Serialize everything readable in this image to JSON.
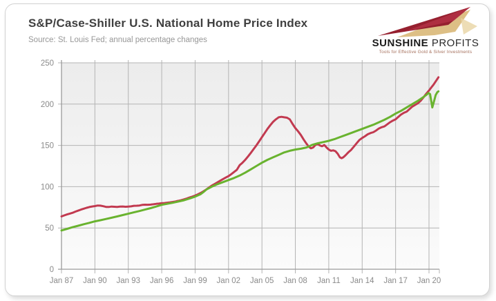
{
  "header": {
    "title": "S&P/Case-Shiller U.S. National Home Price Index",
    "source": "Source: St. Louis Fed; annual percentage changes"
  },
  "logo": {
    "name_bold": "SUNSHINE",
    "name_light": " PROFITS",
    "tagline": "Tools for Effective Gold & Silver Investments",
    "colors": {
      "maroon": "#96202f",
      "crimson": "#c23a50",
      "gold": "#d9b878",
      "gold_light": "#e8d4a4"
    }
  },
  "colors": {
    "title": "#3f3f3f",
    "source": "#979797",
    "card_border": "#d2d2d2",
    "grid": "#b3b3b3",
    "axis": "#9a9a9a",
    "tick_label": "#8a8a8a",
    "plot_bg_top": "#ececec",
    "plot_bg_bottom": "#fbfbfb",
    "red_line": "#c23a50",
    "green_line": "#69b32f"
  },
  "chart_data": {
    "type": "line",
    "title": "S&P/Case-Shiller U.S. National Home Price Index",
    "xlabel": "",
    "ylabel": "",
    "grid": true,
    "legend": "none",
    "x_axis": {
      "range": [
        1987,
        2020.93
      ],
      "tick_years": [
        1987,
        1990,
        1993,
        1996,
        1999,
        2002,
        2005,
        2008,
        2011,
        2014,
        2017,
        2020
      ],
      "tick_labels": [
        "Jan 87",
        "Jan 90",
        "Jan 93",
        "Jan 96",
        "Jan 99",
        "Jan 02",
        "Jan 05",
        "Jan 08",
        "Jan 11",
        "Jan 14",
        "Jan 17",
        "Jan 20"
      ]
    },
    "y_axis": {
      "range": [
        0,
        250
      ],
      "ticks": [
        0,
        50,
        100,
        150,
        200,
        250
      ]
    },
    "series": [
      {
        "name": "red line (home price index)",
        "color": "#c23a50",
        "points": [
          [
            1987.0,
            64
          ],
          [
            1987.25,
            65.2
          ],
          [
            1987.5,
            66.4
          ],
          [
            1987.75,
            67.4
          ],
          [
            1988.0,
            68.4
          ],
          [
            1988.25,
            69.8
          ],
          [
            1988.5,
            71
          ],
          [
            1988.75,
            72.2
          ],
          [
            1989.0,
            73.3
          ],
          [
            1989.25,
            74.4
          ],
          [
            1989.5,
            75.3
          ],
          [
            1989.75,
            76
          ],
          [
            1990.0,
            76.5
          ],
          [
            1990.25,
            77.2
          ],
          [
            1990.5,
            77
          ],
          [
            1990.75,
            76.3
          ],
          [
            1991.0,
            75.5
          ],
          [
            1991.25,
            75.4
          ],
          [
            1991.5,
            75.9
          ],
          [
            1991.75,
            75.7
          ],
          [
            1992.0,
            75.4
          ],
          [
            1992.25,
            75.8
          ],
          [
            1992.5,
            76
          ],
          [
            1992.75,
            75.7
          ],
          [
            1993.0,
            75.9
          ],
          [
            1993.25,
            76.2
          ],
          [
            1993.5,
            76.8
          ],
          [
            1993.75,
            76.9
          ],
          [
            1994.0,
            77.2
          ],
          [
            1994.25,
            77.9
          ],
          [
            1994.5,
            78.2
          ],
          [
            1994.75,
            78.1
          ],
          [
            1995.0,
            78.3
          ],
          [
            1995.25,
            78.7
          ],
          [
            1995.5,
            79.2
          ],
          [
            1995.75,
            79.5
          ],
          [
            1996.0,
            79.9
          ],
          [
            1996.25,
            80.2
          ],
          [
            1996.5,
            80.6
          ],
          [
            1996.75,
            81
          ],
          [
            1997.0,
            81.5
          ],
          [
            1997.25,
            82.1
          ],
          [
            1997.5,
            82.9
          ],
          [
            1997.75,
            83.7
          ],
          [
            1998.0,
            84.6
          ],
          [
            1998.25,
            85.7
          ],
          [
            1998.5,
            86.9
          ],
          [
            1998.75,
            88
          ],
          [
            1999.0,
            89.2
          ],
          [
            1999.25,
            90.7
          ],
          [
            1999.5,
            92.4
          ],
          [
            1999.75,
            94.4
          ],
          [
            2000.0,
            96.6
          ],
          [
            2000.25,
            99
          ],
          [
            2000.5,
            101.3
          ],
          [
            2000.75,
            103.3
          ],
          [
            2001.0,
            105.2
          ],
          [
            2001.25,
            107.2
          ],
          [
            2001.5,
            109.2
          ],
          [
            2001.75,
            111
          ],
          [
            2002.0,
            112.8
          ],
          [
            2002.25,
            115.2
          ],
          [
            2002.5,
            117.8
          ],
          [
            2002.75,
            120.5
          ],
          [
            2003.0,
            126
          ],
          [
            2003.25,
            129
          ],
          [
            2003.5,
            132.5
          ],
          [
            2003.75,
            136.5
          ],
          [
            2004.0,
            141
          ],
          [
            2004.25,
            145.5
          ],
          [
            2004.5,
            150
          ],
          [
            2004.75,
            155
          ],
          [
            2005.0,
            160
          ],
          [
            2005.25,
            165
          ],
          [
            2005.5,
            170
          ],
          [
            2005.75,
            174.5
          ],
          [
            2006.0,
            178.5
          ],
          [
            2006.25,
            181.5
          ],
          [
            2006.5,
            184
          ],
          [
            2006.75,
            184.6
          ],
          [
            2007.0,
            184
          ],
          [
            2007.25,
            183.5
          ],
          [
            2007.5,
            181.5
          ],
          [
            2007.75,
            176
          ],
          [
            2008.0,
            171
          ],
          [
            2008.25,
            167
          ],
          [
            2008.5,
            162.5
          ],
          [
            2008.75,
            157
          ],
          [
            2009.0,
            152
          ],
          [
            2009.2,
            148.5
          ],
          [
            2009.4,
            146.5
          ],
          [
            2009.6,
            147.5
          ],
          [
            2009.8,
            150.5
          ],
          [
            2010.0,
            151.5
          ],
          [
            2010.2,
            150
          ],
          [
            2010.4,
            149
          ],
          [
            2010.6,
            150.5
          ],
          [
            2010.8,
            147.5
          ],
          [
            2011.0,
            145
          ],
          [
            2011.2,
            143.5
          ],
          [
            2011.4,
            144
          ],
          [
            2011.6,
            143
          ],
          [
            2011.8,
            140
          ],
          [
            2012.0,
            135.5
          ],
          [
            2012.15,
            134.5
          ],
          [
            2012.3,
            135.5
          ],
          [
            2012.5,
            138
          ],
          [
            2012.75,
            141.5
          ],
          [
            2013.0,
            144.5
          ],
          [
            2013.25,
            148.5
          ],
          [
            2013.5,
            152.5
          ],
          [
            2013.75,
            156.5
          ],
          [
            2014.0,
            159
          ],
          [
            2014.25,
            161
          ],
          [
            2014.5,
            163.5
          ],
          [
            2014.75,
            165
          ],
          [
            2015.0,
            166
          ],
          [
            2015.25,
            168
          ],
          [
            2015.5,
            170.5
          ],
          [
            2015.75,
            172
          ],
          [
            2016.0,
            173
          ],
          [
            2016.25,
            175.5
          ],
          [
            2016.5,
            178
          ],
          [
            2016.75,
            180
          ],
          [
            2017.0,
            181.5
          ],
          [
            2017.25,
            184.5
          ],
          [
            2017.5,
            187.5
          ],
          [
            2017.75,
            189.5
          ],
          [
            2018.0,
            191
          ],
          [
            2018.25,
            194
          ],
          [
            2018.5,
            197
          ],
          [
            2018.75,
            199
          ],
          [
            2019.0,
            201
          ],
          [
            2019.25,
            204
          ],
          [
            2019.5,
            208
          ],
          [
            2019.75,
            212.5
          ],
          [
            2020.0,
            216.5
          ],
          [
            2020.2,
            220
          ],
          [
            2020.4,
            223.5
          ],
          [
            2020.6,
            227.5
          ],
          [
            2020.85,
            232.5
          ]
        ]
      },
      {
        "name": "green line (trend)",
        "color": "#69b32f",
        "points": [
          [
            1987.0,
            47
          ],
          [
            1987.5,
            48.9
          ],
          [
            1988.0,
            50.9
          ],
          [
            1988.5,
            52.7
          ],
          [
            1989.0,
            54.5
          ],
          [
            1989.5,
            56.2
          ],
          [
            1990.0,
            58
          ],
          [
            1990.5,
            59.4
          ],
          [
            1991.0,
            60.9
          ],
          [
            1991.5,
            62.4
          ],
          [
            1992.0,
            64
          ],
          [
            1992.5,
            65.6
          ],
          [
            1993.0,
            67.2
          ],
          [
            1993.5,
            68.9
          ],
          [
            1994.0,
            70.5
          ],
          [
            1994.5,
            72.2
          ],
          [
            1995.0,
            74
          ],
          [
            1995.5,
            75.9
          ],
          [
            1996.0,
            78
          ],
          [
            1996.5,
            79.3
          ],
          [
            1997.0,
            80.5
          ],
          [
            1997.5,
            82
          ],
          [
            1998.0,
            83.5
          ],
          [
            1998.5,
            85.6
          ],
          [
            1999.0,
            88
          ],
          [
            1999.5,
            91
          ],
          [
            1999.75,
            93.5
          ],
          [
            2000.0,
            96.5
          ],
          [
            2000.5,
            100
          ],
          [
            2001.0,
            103
          ],
          [
            2001.5,
            105.5
          ],
          [
            2002.0,
            108
          ],
          [
            2002.5,
            110.5
          ],
          [
            2003.0,
            113.5
          ],
          [
            2003.5,
            117
          ],
          [
            2004.0,
            121
          ],
          [
            2004.5,
            125
          ],
          [
            2005.0,
            129
          ],
          [
            2005.5,
            132.5
          ],
          [
            2006.0,
            135.5
          ],
          [
            2006.5,
            138.5
          ],
          [
            2007.0,
            141.5
          ],
          [
            2007.5,
            143.5
          ],
          [
            2008.0,
            145
          ],
          [
            2008.5,
            146
          ],
          [
            2009.0,
            147.5
          ],
          [
            2009.5,
            150.5
          ],
          [
            2010.0,
            152.5
          ],
          [
            2010.5,
            154
          ],
          [
            2011.0,
            155.5
          ],
          [
            2011.5,
            157.5
          ],
          [
            2012.0,
            160
          ],
          [
            2012.5,
            162.5
          ],
          [
            2013.0,
            165
          ],
          [
            2013.5,
            167.5
          ],
          [
            2014.0,
            170
          ],
          [
            2014.5,
            172.5
          ],
          [
            2015.0,
            175
          ],
          [
            2015.5,
            178
          ],
          [
            2016.0,
            181
          ],
          [
            2016.5,
            184.5
          ],
          [
            2017.0,
            188.5
          ],
          [
            2017.5,
            192
          ],
          [
            2018.0,
            196
          ],
          [
            2018.5,
            200
          ],
          [
            2019.0,
            204
          ],
          [
            2019.5,
            208.5
          ],
          [
            2019.75,
            211
          ],
          [
            2019.95,
            213.5
          ],
          [
            2020.1,
            212
          ],
          [
            2020.3,
            196
          ],
          [
            2020.45,
            203.5
          ],
          [
            2020.6,
            211
          ],
          [
            2020.75,
            214.5
          ],
          [
            2020.85,
            215.5
          ]
        ]
      }
    ]
  }
}
